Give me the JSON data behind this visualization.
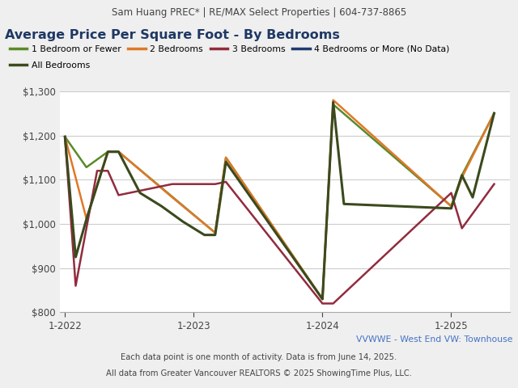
{
  "header_text": "Sam Huang PREC* | RE/MAX Select Properties | 604-737-8865",
  "title": "Average Price Per Square Foot - By Bedrooms",
  "footer1": "VVWWE - West End VW: Townhouse",
  "footer2": "Each data point is one month of activity. Data is from June 14, 2025.",
  "footer3": "All data from Greater Vancouver REALTORS © 2025 ShowingTime Plus, LLC.",
  "bg_color": "#efefef",
  "plot_bg": "#ffffff",
  "ylim": [
    800,
    1300
  ],
  "ytick_vals": [
    800,
    900,
    1000,
    1100,
    1200,
    1300
  ],
  "xlim": [
    -0.5,
    41.5
  ],
  "xtick_positions": [
    0,
    12,
    24,
    36
  ],
  "xtick_labels": [
    "1-2022",
    "1-2023",
    "1-2024",
    "1-2025"
  ],
  "title_color": "#1f3864",
  "header_color": "#444444",
  "footer1_color": "#4472c4",
  "footer_color": "#444444",
  "series": [
    {
      "label": "1 Bedroom or Fewer",
      "color": "#5a8a2a",
      "lw": 1.8,
      "x": [
        0,
        2,
        4,
        5,
        14,
        15,
        24,
        25,
        36,
        37,
        40
      ],
      "y": [
        1197,
        1128,
        1163,
        1163,
        980,
        1150,
        830,
        1270,
        1040,
        1110,
        1250
      ]
    },
    {
      "label": "2 Bedrooms",
      "color": "#e07828",
      "lw": 1.8,
      "x": [
        0,
        2,
        4,
        5,
        10,
        14,
        15,
        24,
        25,
        36,
        37,
        40
      ],
      "y": [
        1197,
        1012,
        1163,
        1163,
        1060,
        980,
        1150,
        830,
        1280,
        1040,
        1105,
        1250
      ]
    },
    {
      "label": "3 Bedrooms",
      "color": "#922b3e",
      "lw": 1.8,
      "x": [
        0,
        1,
        3,
        4,
        5,
        10,
        14,
        15,
        24,
        25,
        36,
        37,
        40
      ],
      "y": [
        1197,
        860,
        1120,
        1120,
        1065,
        1090,
        1090,
        1095,
        820,
        820,
        1070,
        990,
        1090
      ]
    },
    {
      "label": "4 Bedrooms or More (No Data)",
      "color": "#1f3a6e",
      "lw": 1.8,
      "x": [],
      "y": []
    },
    {
      "label": "All Bedrooms",
      "color": "#3b4a1e",
      "lw": 2.2,
      "x": [
        0,
        1,
        2,
        4,
        5,
        7,
        9,
        11,
        13,
        14,
        15,
        24,
        25,
        26,
        36,
        37,
        38,
        40
      ],
      "y": [
        1197,
        925,
        1010,
        1163,
        1163,
        1070,
        1040,
        1005,
        975,
        975,
        1140,
        830,
        1275,
        1045,
        1035,
        1110,
        1060,
        1250
      ]
    }
  ]
}
